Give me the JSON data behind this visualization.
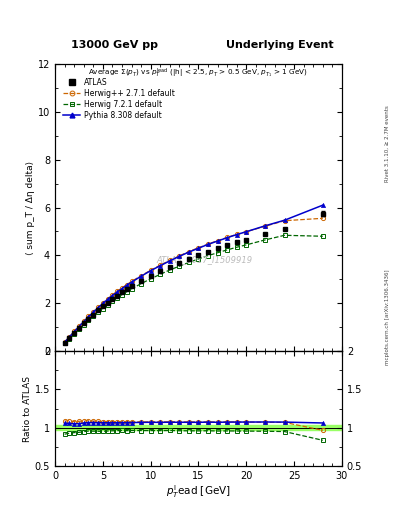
{
  "title_left": "13000 GeV pp",
  "title_right": "Underlying Event",
  "inner_title": "Average Σ(p_T) vs p_T^{lead} (|h| < 2.5, p_T > 0.5 GeV, p_{T_1} > 1 GeV)",
  "ylabel_main": "⟨ sum p_T / Δη delta⟩",
  "ylabel_ratio": "Ratio to ATLAS",
  "xlabel": "p_T^{l}ead [GeV]",
  "rivet_label": "Rivet 3.1.10, ≥ 2.7M events",
  "arxiv_label": "mcplots.cern.ch [arXiv:1306.3436]",
  "watermark": "ATLAS_2017_I1509919",
  "ylim_main": [
    0,
    12
  ],
  "ylim_ratio": [
    0.5,
    2.0
  ],
  "xlim": [
    0,
    30
  ],
  "yticks_main": [
    0,
    2,
    4,
    6,
    8,
    10,
    12
  ],
  "yticks_ratio": [
    0.5,
    1.0,
    1.5,
    2.0
  ],
  "atlas_x": [
    1.0,
    1.5,
    2.0,
    2.5,
    3.0,
    3.5,
    4.0,
    4.5,
    5.0,
    5.5,
    6.0,
    6.5,
    7.0,
    7.5,
    8.0,
    9.0,
    10.0,
    11.0,
    12.0,
    13.0,
    14.0,
    15.0,
    16.0,
    17.0,
    18.0,
    19.0,
    20.0,
    22.0,
    24.0,
    28.0
  ],
  "atlas_y": [
    0.35,
    0.55,
    0.77,
    0.97,
    1.16,
    1.34,
    1.52,
    1.7,
    1.87,
    2.03,
    2.18,
    2.32,
    2.45,
    2.58,
    2.7,
    2.93,
    3.14,
    3.34,
    3.52,
    3.7,
    3.87,
    4.02,
    4.16,
    4.3,
    4.42,
    4.54,
    4.65,
    4.88,
    5.1,
    5.75
  ],
  "atlas_yerr": [
    0.01,
    0.01,
    0.01,
    0.01,
    0.01,
    0.01,
    0.01,
    0.01,
    0.01,
    0.01,
    0.01,
    0.01,
    0.01,
    0.01,
    0.01,
    0.01,
    0.01,
    0.01,
    0.01,
    0.01,
    0.01,
    0.02,
    0.02,
    0.02,
    0.02,
    0.02,
    0.02,
    0.03,
    0.04,
    0.1
  ],
  "herwig_pp_x": [
    1.0,
    1.5,
    2.0,
    2.5,
    3.0,
    3.5,
    4.0,
    4.5,
    5.0,
    5.5,
    6.0,
    6.5,
    7.0,
    7.5,
    8.0,
    9.0,
    10.0,
    11.0,
    12.0,
    13.0,
    14.0,
    15.0,
    16.0,
    17.0,
    18.0,
    19.0,
    20.0,
    22.0,
    24.0,
    28.0
  ],
  "herwig_pp_y": [
    0.38,
    0.6,
    0.83,
    1.05,
    1.26,
    1.46,
    1.65,
    1.84,
    2.02,
    2.19,
    2.35,
    2.5,
    2.64,
    2.78,
    2.91,
    3.15,
    3.38,
    3.59,
    3.79,
    3.98,
    4.16,
    4.32,
    4.47,
    4.62,
    4.75,
    4.88,
    4.99,
    5.22,
    5.45,
    5.55
  ],
  "herwig7_x": [
    1.0,
    1.5,
    2.0,
    2.5,
    3.0,
    3.5,
    4.0,
    4.5,
    5.0,
    5.5,
    6.0,
    6.5,
    7.0,
    7.5,
    8.0,
    9.0,
    10.0,
    11.0,
    12.0,
    13.0,
    14.0,
    15.0,
    16.0,
    17.0,
    18.0,
    19.0,
    20.0,
    22.0,
    24.0,
    28.0
  ],
  "herwig7_y": [
    0.32,
    0.51,
    0.72,
    0.91,
    1.1,
    1.28,
    1.45,
    1.62,
    1.78,
    1.94,
    2.09,
    2.23,
    2.36,
    2.48,
    2.6,
    2.82,
    3.02,
    3.21,
    3.39,
    3.55,
    3.71,
    3.85,
    3.99,
    4.11,
    4.23,
    4.34,
    4.44,
    4.65,
    4.84,
    4.8
  ],
  "pythia_x": [
    1.0,
    1.5,
    2.0,
    2.5,
    3.0,
    3.5,
    4.0,
    4.5,
    5.0,
    5.5,
    6.0,
    6.5,
    7.0,
    7.5,
    8.0,
    9.0,
    10.0,
    11.0,
    12.0,
    13.0,
    14.0,
    15.0,
    16.0,
    17.0,
    18.0,
    19.0,
    20.0,
    22.0,
    24.0,
    28.0
  ],
  "pythia_y": [
    0.37,
    0.58,
    0.81,
    1.02,
    1.23,
    1.43,
    1.62,
    1.81,
    1.99,
    2.16,
    2.32,
    2.47,
    2.61,
    2.75,
    2.88,
    3.13,
    3.36,
    3.57,
    3.77,
    3.96,
    4.14,
    4.3,
    4.46,
    4.6,
    4.74,
    4.87,
    4.99,
    5.24,
    5.47,
    6.1
  ],
  "color_atlas": "#000000",
  "color_herwig_pp": "#cc6600",
  "color_herwig7": "#006600",
  "color_pythia": "#0000cc",
  "color_ratio_band": "#99ff66"
}
